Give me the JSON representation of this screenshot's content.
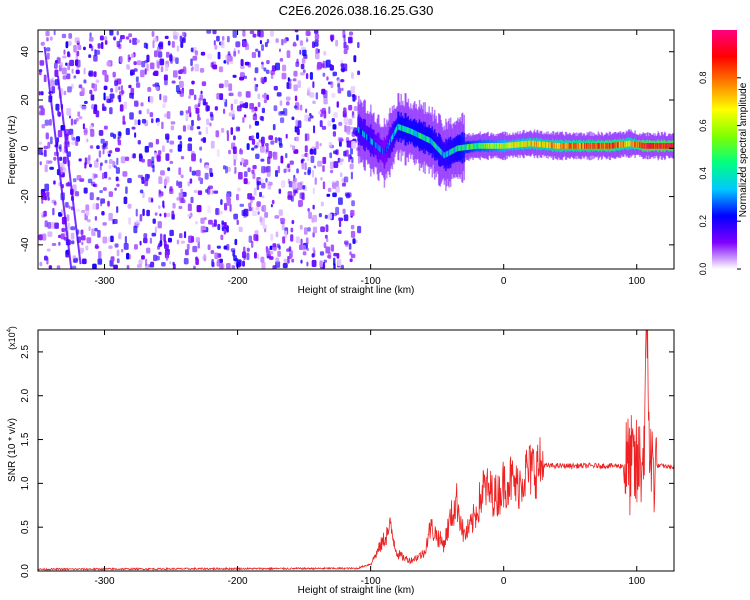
{
  "figure": {
    "title": "C2E6.2026.038.16.25.G30"
  },
  "chart_data": [
    {
      "type": "heatmap",
      "title": "C2E6.2026.038.16.25.G30",
      "xlabel": "Height of straight line (km)",
      "ylabel": "Frequency (Hz)",
      "xlim": [
        -350,
        128
      ],
      "ylim": [
        -50,
        49
      ],
      "x_ticks": [
        -300,
        -200,
        -100,
        0,
        100
      ],
      "y_ticks": [
        -40,
        -20,
        0,
        20,
        40
      ],
      "colorbar": {
        "label": "Normalized spectral amplitude",
        "range": [
          0,
          1
        ],
        "ticks": [
          "0.0",
          "0.2",
          "0.4",
          "0.6",
          "0.8"
        ],
        "colormap": [
          "#ffffff",
          "#7f00ff",
          "#0000ff",
          "#00c8ff",
          "#00ff80",
          "#80ff00",
          "#ffff00",
          "#ff8000",
          "#ff0000",
          "#ff0080"
        ]
      },
      "features": {
        "noise_region_x": [
          -350,
          -110
        ],
        "noise_amplitude": 0.15,
        "signal_ridge": [
          {
            "x": -110,
            "y": 8,
            "amp": 0.3
          },
          {
            "x": -100,
            "y": 3,
            "amp": 0.3
          },
          {
            "x": -90,
            "y": -2,
            "amp": 0.2
          },
          {
            "x": -80,
            "y": 9,
            "amp": 0.4
          },
          {
            "x": -70,
            "y": 7,
            "amp": 0.4
          },
          {
            "x": -55,
            "y": 3,
            "amp": 0.4
          },
          {
            "x": -45,
            "y": -3,
            "amp": 0.35
          },
          {
            "x": -35,
            "y": 0,
            "amp": 0.4
          },
          {
            "x": -20,
            "y": 1,
            "amp": 0.5
          },
          {
            "x": 0,
            "y": 1,
            "amp": 0.6
          },
          {
            "x": 20,
            "y": 2,
            "amp": 0.7
          },
          {
            "x": 40,
            "y": 1,
            "amp": 0.75
          },
          {
            "x": 60,
            "y": 1,
            "amp": 0.8
          },
          {
            "x": 80,
            "y": 1,
            "amp": 0.85
          },
          {
            "x": 95,
            "y": 2,
            "amp": 0.7
          },
          {
            "x": 105,
            "y": 1,
            "amp": 0.9
          },
          {
            "x": 128,
            "y": 1,
            "amp": 0.9
          }
        ]
      }
    },
    {
      "type": "line",
      "xlabel": "Height of straight line (km)",
      "ylabel": "SNR (10 * v/v)",
      "yscale_label": "(x10",
      "yscale_exp": "4",
      "xlim": [
        -350,
        128
      ],
      "ylim": [
        0,
        2.75
      ],
      "x_ticks": [
        -300,
        -200,
        -100,
        0,
        100
      ],
      "y_ticks": [
        "0.0",
        "0.5",
        "1.0",
        "1.5",
        "2.0",
        "2.5"
      ],
      "line_color": "#ee2222",
      "x": [
        -350,
        -110,
        -100,
        -92,
        -85,
        -80,
        -75,
        -70,
        -60,
        -55,
        -50,
        -45,
        -40,
        -35,
        -30,
        -25,
        -20,
        -15,
        -10,
        -5,
        0,
        5,
        10,
        15,
        20,
        25,
        30,
        40,
        50,
        60,
        70,
        80,
        90,
        95,
        100,
        105,
        108,
        110,
        115,
        120,
        128
      ],
      "y": [
        0.02,
        0.03,
        0.08,
        0.3,
        0.5,
        0.2,
        0.15,
        0.12,
        0.2,
        0.5,
        0.4,
        0.3,
        0.6,
        0.8,
        0.4,
        0.5,
        0.7,
        0.95,
        0.9,
        0.85,
        1.0,
        1.05,
        0.95,
        1.1,
        1.15,
        1.18,
        1.2,
        1.2,
        1.2,
        1.2,
        1.2,
        1.2,
        1.2,
        1.2,
        1.15,
        1.3,
        2.7,
        1.2,
        1.2,
        1.2,
        1.18
      ]
    }
  ]
}
